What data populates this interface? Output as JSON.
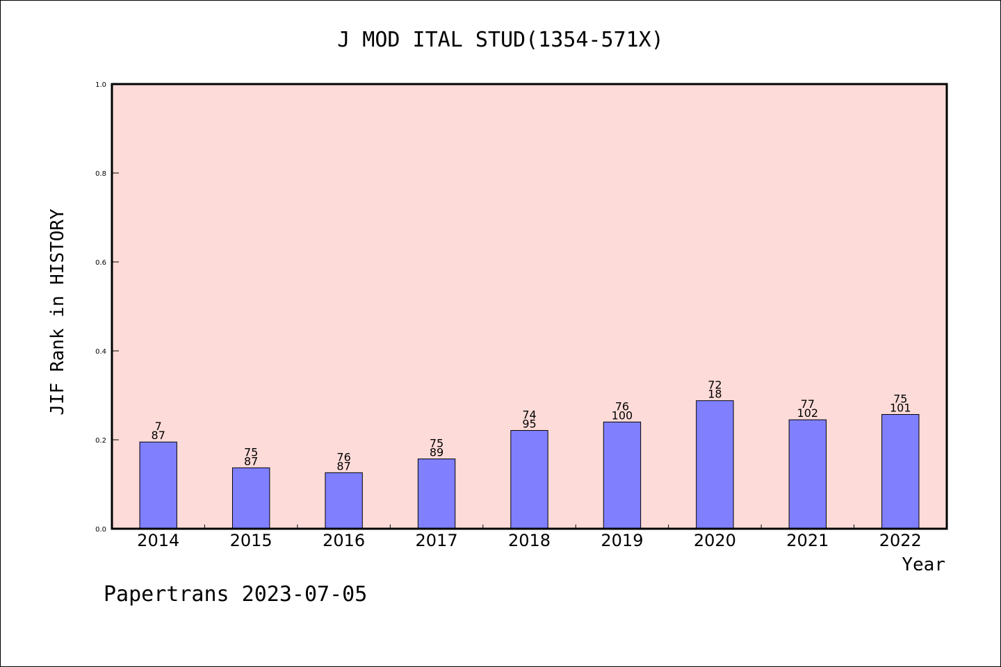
{
  "chart_data": {
    "type": "bar",
    "title": "J MOD ITAL STUD(1354-571X)",
    "xlabel": "Year",
    "ylabel": "JIF Rank in HISTORY",
    "ylim": [
      0,
      1.0
    ],
    "yticks": [
      "0.0",
      "0.2",
      "0.4",
      "0.6",
      "0.8",
      "1.0"
    ],
    "grid": false,
    "legend": "none",
    "categories": [
      "2014",
      "2015",
      "2016",
      "2017",
      "2018",
      "2019",
      "2020",
      "2021",
      "2022"
    ],
    "values": [
      0.195,
      0.137,
      0.126,
      0.157,
      0.221,
      0.24,
      0.288,
      0.245,
      0.257
    ],
    "bar_labels": [
      [
        "7",
        "87"
      ],
      [
        "75",
        "87"
      ],
      [
        "76",
        "87"
      ],
      [
        "75",
        "89"
      ],
      [
        "74",
        "95"
      ],
      [
        "76",
        "100"
      ],
      [
        "72",
        "18"
      ],
      [
        "77",
        "102"
      ],
      [
        "75",
        "101"
      ]
    ],
    "colors": {
      "plot_background": "#fddbd8",
      "bar_fill": "#8080ff",
      "bar_stroke": "#000000"
    }
  },
  "footer": "Papertrans 2023-07-05"
}
